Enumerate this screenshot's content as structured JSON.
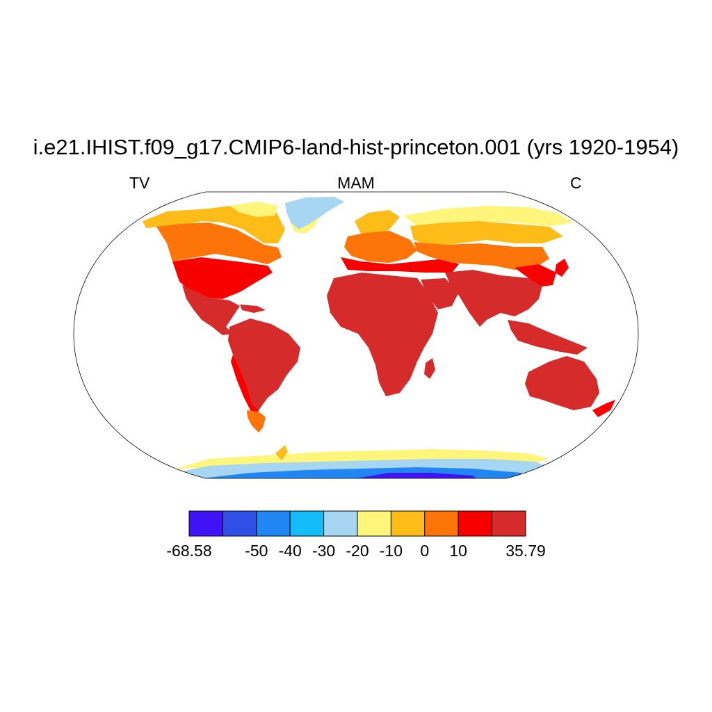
{
  "title": "i.e21.IHIST.f09_g17.CMIP6-land-hist-princeton.001 (yrs 1920-1954)",
  "left_label": "TV",
  "center_label": "MAM",
  "right_label": "C",
  "map": {
    "projection": "robinson",
    "variable": "TV",
    "season": "MAM",
    "units": "C",
    "land_outline": true
  },
  "colorbar": {
    "colors": [
      "#3f13f6",
      "#2f4fe6",
      "#1f86f3",
      "#14bdf7",
      "#a6d6f2",
      "#fff57a",
      "#fdbc17",
      "#fd7408",
      "#f80000",
      "#d62b2b"
    ],
    "labels": [
      "-68.58",
      "-50",
      "-40",
      "-30",
      "-20",
      "-10",
      "0",
      "10",
      "35.79"
    ],
    "label_boundaries": [
      0,
      2,
      3,
      4,
      5,
      6,
      7,
      8,
      10
    ]
  }
}
